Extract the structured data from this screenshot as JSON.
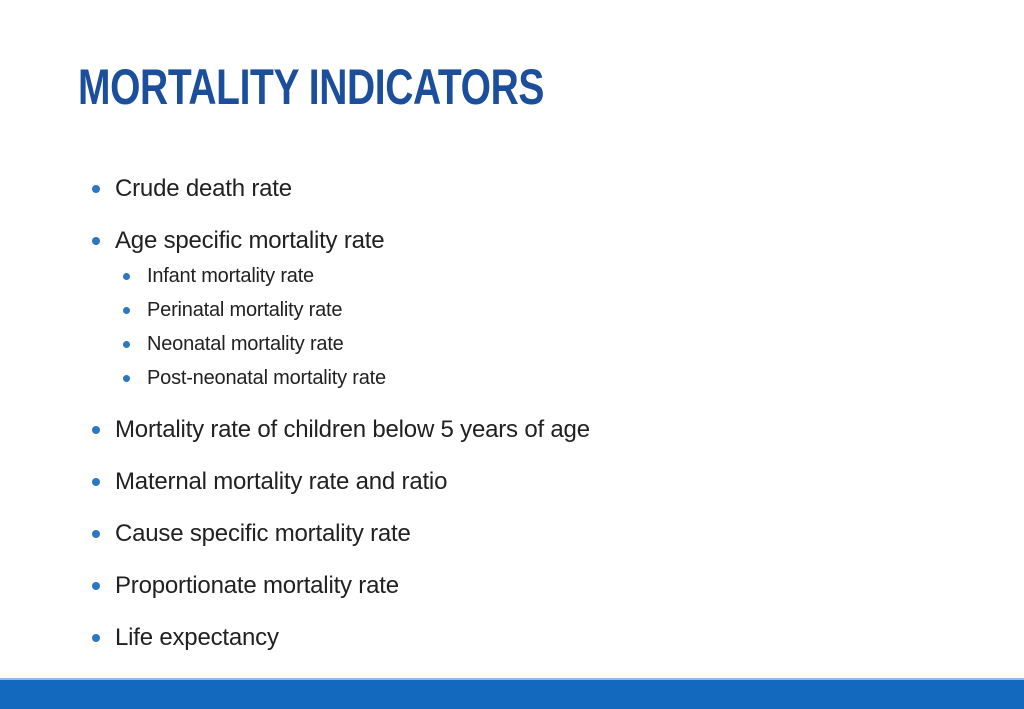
{
  "slide": {
    "title": "MORTALITY INDICATORS",
    "colors": {
      "title_blue": "#1B4F9C",
      "bullet_blue": "#2B77C0",
      "bar_blue": "#1269BE",
      "text": "#212121"
    },
    "bullets": [
      {
        "label": "Crude death rate",
        "level": 1
      },
      {
        "label": "Age specific mortality rate",
        "level": 1
      },
      {
        "label": "Infant mortality rate",
        "level": 2
      },
      {
        "label": "Perinatal mortality rate",
        "level": 2
      },
      {
        "label": "Neonatal mortality rate",
        "level": 2
      },
      {
        "label": "Post-neonatal mortality rate",
        "level": 2
      },
      {
        "label": "Mortality rate of children below 5 years of age",
        "level": 1
      },
      {
        "label": "Maternal mortality rate and ratio",
        "level": 1
      },
      {
        "label": "Cause specific mortality rate",
        "level": 1
      },
      {
        "label": "Proportionate mortality rate",
        "level": 1
      },
      {
        "label": "Life expectancy",
        "level": 1
      }
    ]
  }
}
